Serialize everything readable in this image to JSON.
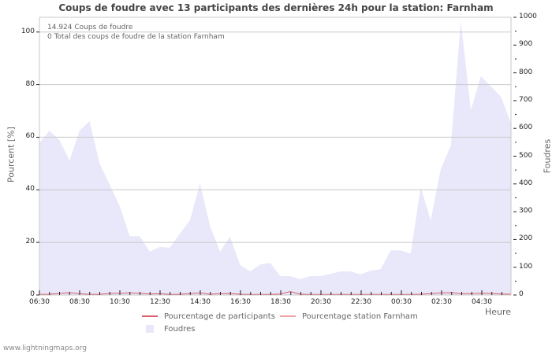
{
  "title": "Coups de foudre avec 13 participants des dernières 24h pour la station: Farnham",
  "annotation": {
    "line1": "14.924  Coups de foudre",
    "line2": "0 Total des coups de foudre de la station Farnham"
  },
  "axes": {
    "left_label": "Pourcent   [%]",
    "right_label": "Foudres",
    "x_label": "Heure"
  },
  "legend": {
    "participants": "Pourcentage de participants",
    "station": "Pourcentage station Farnham",
    "strikes": "Foudres"
  },
  "footer": "www.lightningmaps.org",
  "colors": {
    "area": "#e8e8fa",
    "participants_line": "#d9606a",
    "station_line": "#f0a0a0",
    "grid": "#c8c8c8"
  },
  "chart_data": {
    "type": "area",
    "title": "Coups de foudre avec 13 participants des dernières 24h pour la station: Farnham",
    "xlabel": "Heure",
    "ylabel_left": "Pourcent [%]",
    "ylabel_right": "Foudres",
    "ylim_left": [
      0,
      105.6
    ],
    "ylim_right": [
      0,
      1000
    ],
    "left_ticks": [
      0,
      20,
      40,
      60,
      80,
      100
    ],
    "right_ticks": [
      0,
      100,
      200,
      300,
      400,
      500,
      600,
      700,
      800,
      900,
      1000
    ],
    "x_ticks": [
      "06:30",
      "08:30",
      "10:30",
      "12:30",
      "14:30",
      "16:30",
      "18:30",
      "20:30",
      "22:30",
      "00:30",
      "02:30",
      "04:30"
    ],
    "grid": true,
    "legend_position": "bottom",
    "series": [
      {
        "name": "Foudres",
        "axis": "right",
        "type": "area",
        "interval_minutes": 30,
        "values": [
          547,
          592,
          558,
          484,
          592,
          626,
          473,
          397,
          320,
          212,
          212,
          156,
          173,
          170,
          221,
          269,
          402,
          249,
          156,
          210,
          108,
          85,
          110,
          116,
          68,
          68,
          57,
          68,
          68,
          76,
          85,
          85,
          74,
          88,
          93,
          161,
          161,
          150,
          388,
          269,
          453,
          538,
          986,
          666,
          788,
          751,
          714,
          618
        ]
      },
      {
        "name": "Pourcentage de participants",
        "axis": "left",
        "type": "line",
        "values": [
          0.2,
          0.3,
          0.6,
          0.9,
          0.5,
          0.2,
          0.3,
          0.6,
          0.7,
          0.8,
          0.7,
          0.4,
          0.5,
          0.2,
          0.3,
          0.5,
          0.8,
          0.3,
          0.5,
          0.6,
          0.3,
          0.2,
          0.2,
          0.2,
          0.4,
          1.3,
          0.3,
          0.2,
          0.2,
          0.2,
          0.2,
          0.2,
          0.2,
          0.2,
          0.2,
          0.2,
          0.2,
          0.2,
          0.3,
          0.5,
          0.8,
          0.9,
          0.5,
          0.5,
          0.7,
          0.6,
          0.4,
          0.3
        ]
      },
      {
        "name": "Pourcentage station Farnham",
        "axis": "left",
        "type": "line",
        "values": [
          0,
          0,
          0,
          0,
          0,
          0,
          0,
          0,
          0,
          0,
          0,
          0,
          0,
          0,
          0,
          0,
          0,
          0,
          0,
          0,
          0,
          0,
          0,
          0,
          0,
          0,
          0,
          0,
          0,
          0,
          0,
          0,
          0,
          0,
          0,
          0,
          0,
          0,
          0,
          0,
          0,
          0,
          0,
          0,
          0,
          0,
          0,
          0
        ]
      }
    ]
  }
}
